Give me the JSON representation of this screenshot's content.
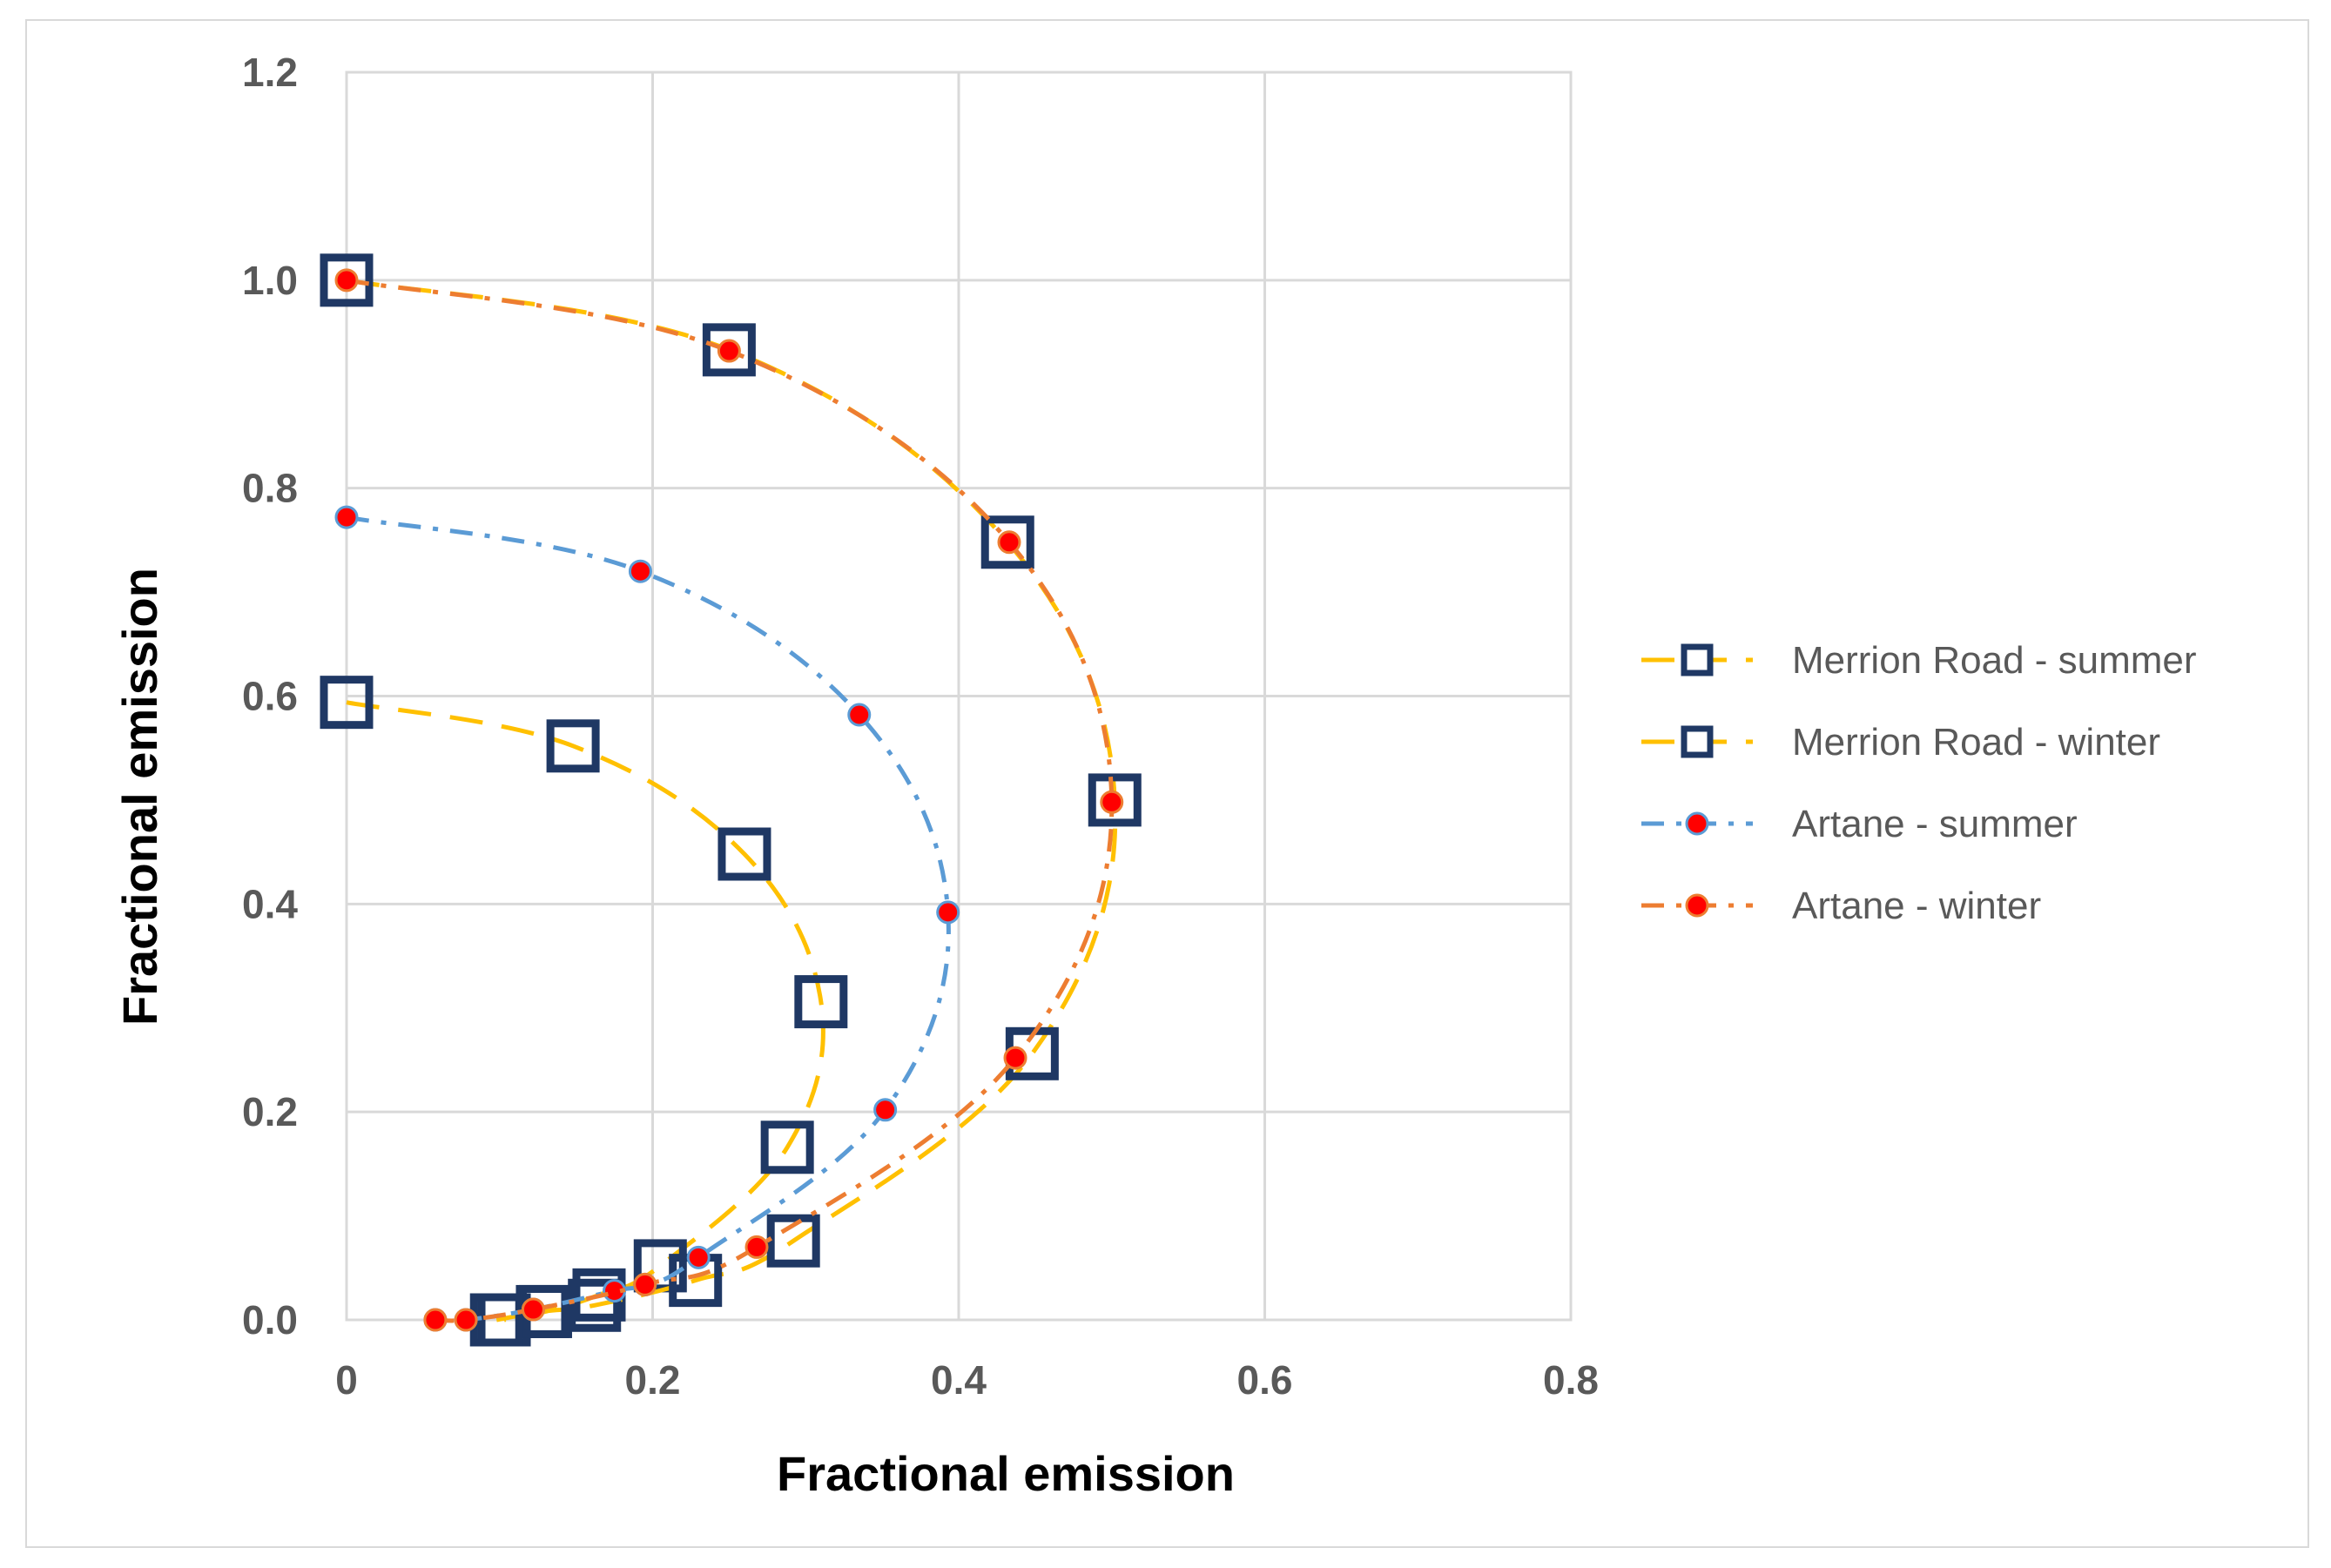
{
  "chart_data": {
    "type": "scatter",
    "title": "",
    "xlabel": "Fractional emission",
    "ylabel": "Fractional emission",
    "xlim": [
      0,
      0.8
    ],
    "ylim": [
      0,
      1.2
    ],
    "xticks": [
      0,
      0.2,
      0.4,
      0.6,
      0.8
    ],
    "xtick_labels": [
      "0",
      "0.2",
      "0.4",
      "0.6",
      "0.8"
    ],
    "yticks": [
      0,
      0.2,
      0.4,
      0.6,
      0.8,
      1.0,
      1.2
    ],
    "ytick_labels": [
      "0.0",
      "0.2",
      "0.4",
      "0.6",
      "0.8",
      "1.0",
      "1.2"
    ],
    "grid": true,
    "legend_position": "right",
    "series": [
      {
        "name": "Merrion Road - summer",
        "color": "#FFC000",
        "marker": "square",
        "marker_color": "#1F3864",
        "dash": "long",
        "x": [
          0.0,
          0.148,
          0.26,
          0.31,
          0.288,
          0.205,
          0.165,
          0.13,
          0.103
        ],
        "y": [
          0.594,
          0.552,
          0.448,
          0.306,
          0.166,
          0.052,
          0.024,
          0.008,
          0.0
        ]
      },
      {
        "name": "Merrion Road - winter",
        "color": "#FFC000",
        "marker": "square",
        "marker_color": "#1F3864",
        "dash": "long",
        "x": [
          0.0,
          0.25,
          0.432,
          0.502,
          0.448,
          0.292,
          0.228,
          0.162,
          0.128,
          0.098
        ],
        "y": [
          1.0,
          0.933,
          0.748,
          0.5,
          0.256,
          0.076,
          0.038,
          0.014,
          0.008,
          0.0
        ]
      },
      {
        "name": "Artane - summer",
        "color": "#5B9BD5",
        "marker": "circle",
        "marker_color": "#FF0000",
        "dash": "dashdot",
        "x": [
          0.0,
          0.192,
          0.335,
          0.393,
          0.352,
          0.23,
          0.195,
          0.175,
          0.122,
          0.078,
          0.058
        ],
        "y": [
          0.772,
          0.72,
          0.582,
          0.392,
          0.202,
          0.06,
          0.034,
          0.028,
          0.01,
          0.0,
          0.0
        ]
      },
      {
        "name": "Artane - winter",
        "color": "#ED7D31",
        "marker": "circle",
        "marker_color": "#FF0000",
        "dash": "dashdot",
        "x": [
          0.0,
          0.25,
          0.433,
          0.5,
          0.437,
          0.268,
          0.195,
          0.122,
          0.078,
          0.058
        ],
        "y": [
          1.0,
          0.932,
          0.748,
          0.498,
          0.252,
          0.07,
          0.034,
          0.01,
          0.0,
          0.0
        ]
      }
    ]
  }
}
